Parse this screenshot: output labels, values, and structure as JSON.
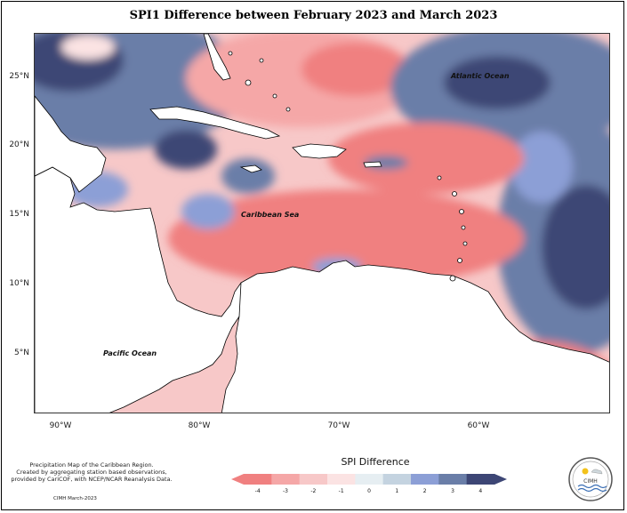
{
  "title": "SPI1 Difference between February 2023 and March 2023",
  "map": {
    "lat_ticks": [
      "25°N",
      "20°N",
      "15°N",
      "10°N",
      "5°N"
    ],
    "lon_ticks": [
      "90°W",
      "80°W",
      "70°W",
      "60°W"
    ],
    "ocean_labels": [
      "Atlantic Ocean",
      "Caribbean Sea",
      "Pacific Ocean"
    ],
    "colors": {
      "-4": "#f08080",
      "-3": "#f5a7a7",
      "-2": "#f7c8c8",
      "-1": "#fbe3e3",
      "0": "#e6eef2",
      "1": "#c4d3e0",
      "2": "#8c9fd6",
      "3": "#6a7ea8",
      "4": "#3d4675",
      "land": "#ffffff",
      "coast": "#000000"
    }
  },
  "legend": {
    "title": "SPI Difference",
    "ticks": [
      "-4",
      "-3",
      "-2",
      "-1",
      "0",
      "1",
      "2",
      "3",
      "4"
    ],
    "colors": [
      "#f08080",
      "#f5a7a7",
      "#f7c8c8",
      "#fbe3e3",
      "#e6eef2",
      "#c4d3e0",
      "#8c9fd6",
      "#6a7ea8",
      "#3d4675"
    ]
  },
  "credits": {
    "line1": "Precipitation Map of the Caribbean Region.",
    "line2": "Created by aggregating station based observations,",
    "line3": "provided by CariCOF, with NCEP/NCAR Reanalysis Data.",
    "date": "CIMH March-2023"
  },
  "logo": {
    "text": "CIMH"
  }
}
